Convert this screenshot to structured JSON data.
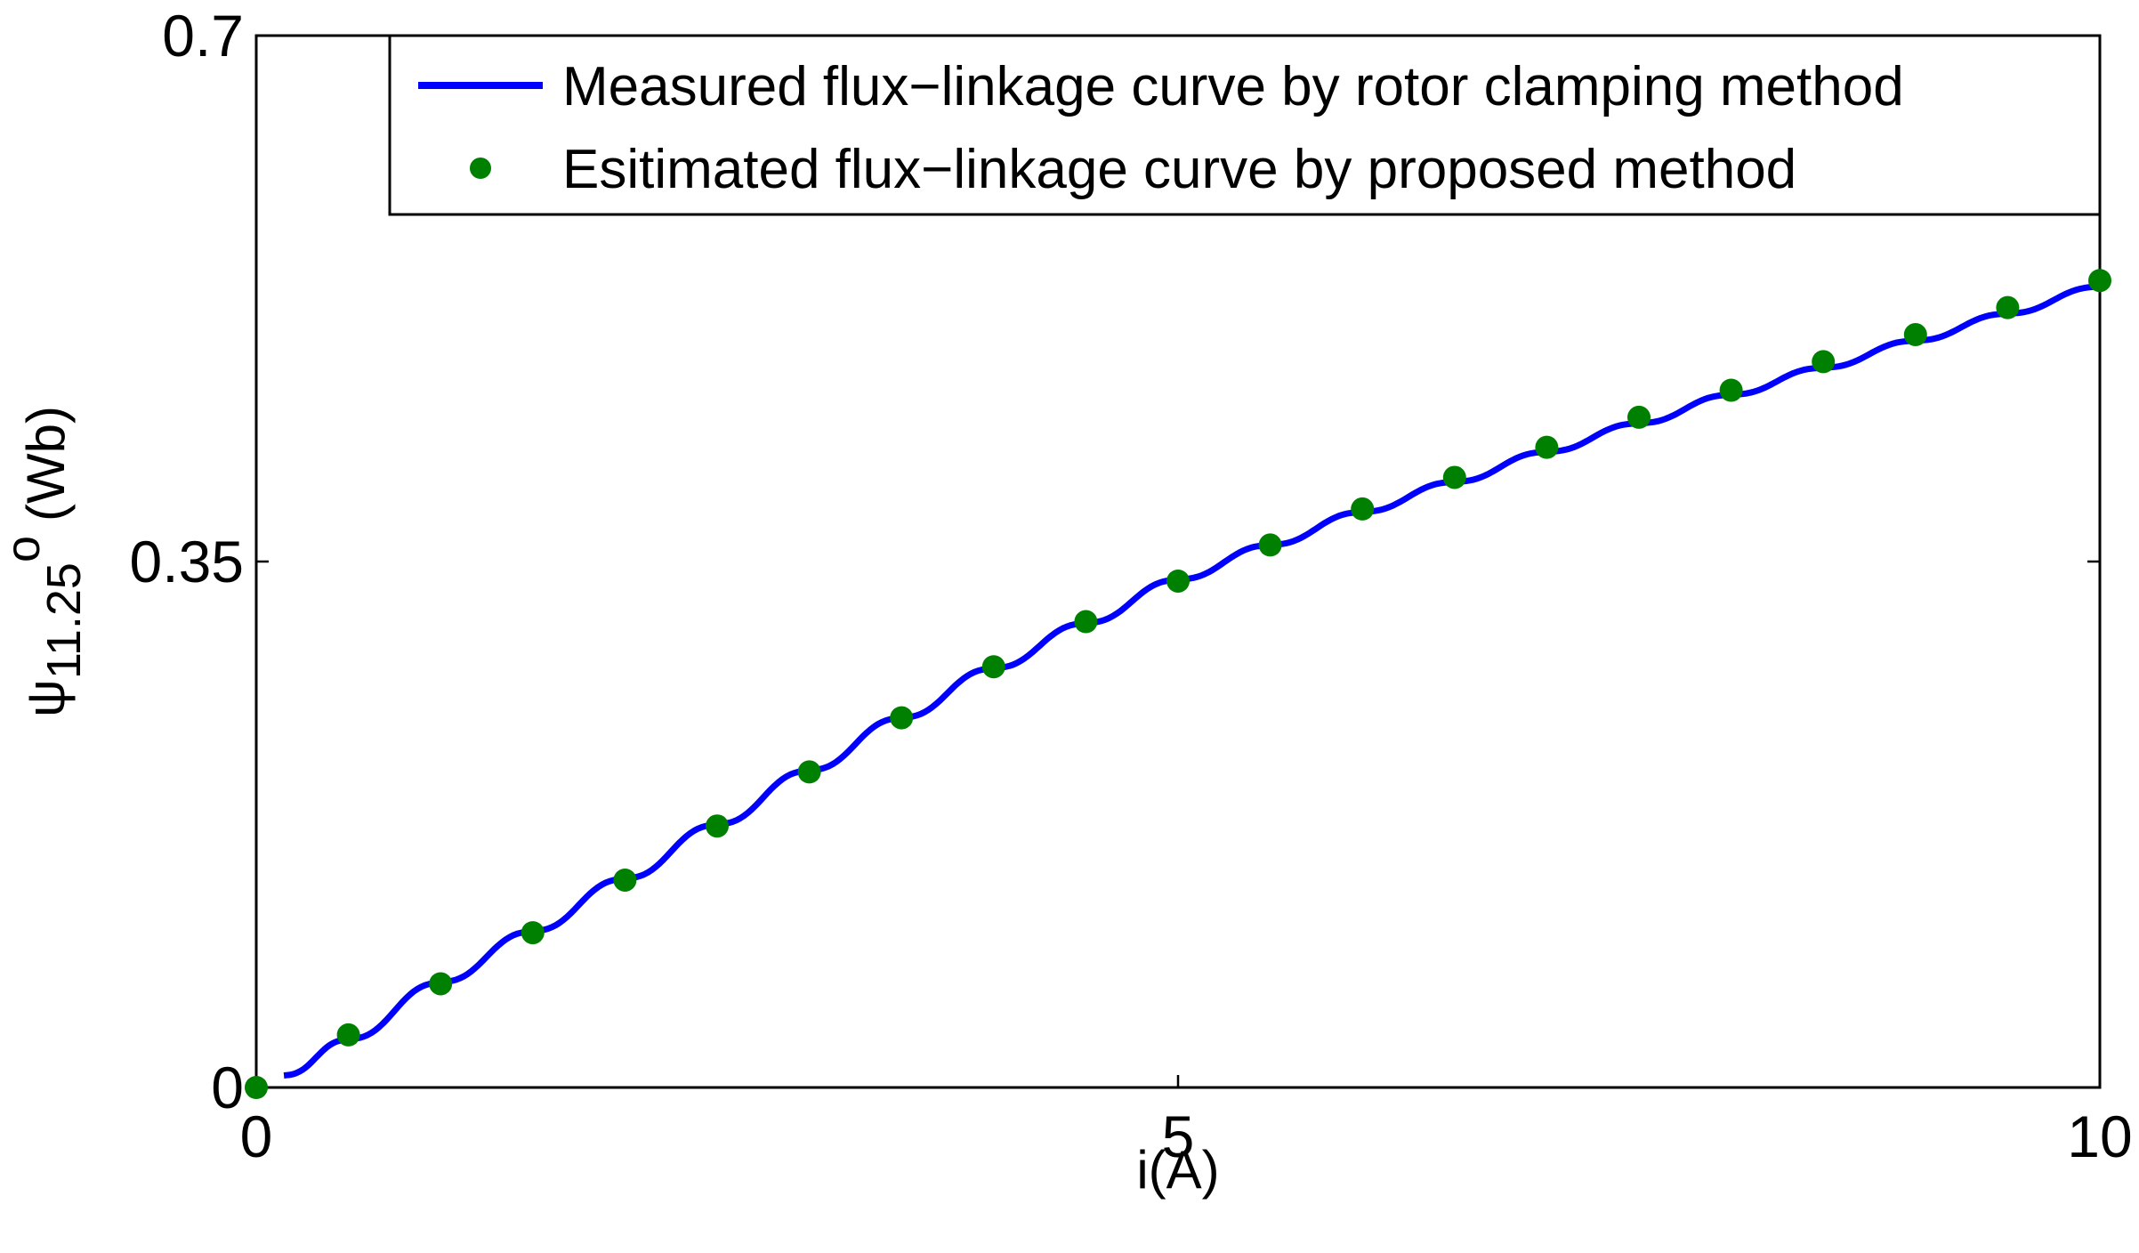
{
  "chart_data": {
    "type": "line",
    "xlabel": "i(A)",
    "ylabel": {
      "symbol": "ψ",
      "subscript": "11.25",
      "superscript": "o",
      "unit": "(Wb)"
    },
    "xlim": [
      0,
      10
    ],
    "ylim": [
      0,
      0.7
    ],
    "x_ticks": [
      0,
      5,
      10
    ],
    "y_ticks": [
      0,
      0.35,
      0.7
    ],
    "x_tick_labels": [
      "0",
      "5",
      "10"
    ],
    "y_tick_labels": [
      "0",
      "0.35",
      "0.7"
    ],
    "grid": false,
    "legend_position": "top-right",
    "series": [
      {
        "name": "Measured flux−linkage curve by rotor clamping method",
        "style": "line",
        "color": "#0000ff",
        "x": [
          0.15,
          0.5,
          1.0,
          1.5,
          2.0,
          2.5,
          3.0,
          3.5,
          4.0,
          4.5,
          5.0,
          5.5,
          6.0,
          6.5,
          7.0,
          7.5,
          8.0,
          8.5,
          9.0,
          9.5,
          10.0
        ],
        "y": [
          0.008,
          0.032,
          0.07,
          0.104,
          0.139,
          0.175,
          0.211,
          0.246,
          0.279,
          0.309,
          0.338,
          0.361,
          0.383,
          0.403,
          0.423,
          0.442,
          0.461,
          0.479,
          0.497,
          0.515,
          0.533
        ]
      },
      {
        "name": "Esitimated flux−linkage curve by proposed method",
        "style": "markers",
        "color": "#008000",
        "x": [
          0,
          0.5,
          1.0,
          1.5,
          2.0,
          2.5,
          3.0,
          3.5,
          4.0,
          4.5,
          5.0,
          5.5,
          6.0,
          6.5,
          7.0,
          7.5,
          8.0,
          8.5,
          9.0,
          9.5,
          10.0
        ],
        "y": [
          0,
          0.035,
          0.069,
          0.103,
          0.138,
          0.174,
          0.21,
          0.246,
          0.28,
          0.31,
          0.337,
          0.361,
          0.385,
          0.406,
          0.426,
          0.446,
          0.464,
          0.483,
          0.501,
          0.519,
          0.537
        ]
      }
    ]
  }
}
